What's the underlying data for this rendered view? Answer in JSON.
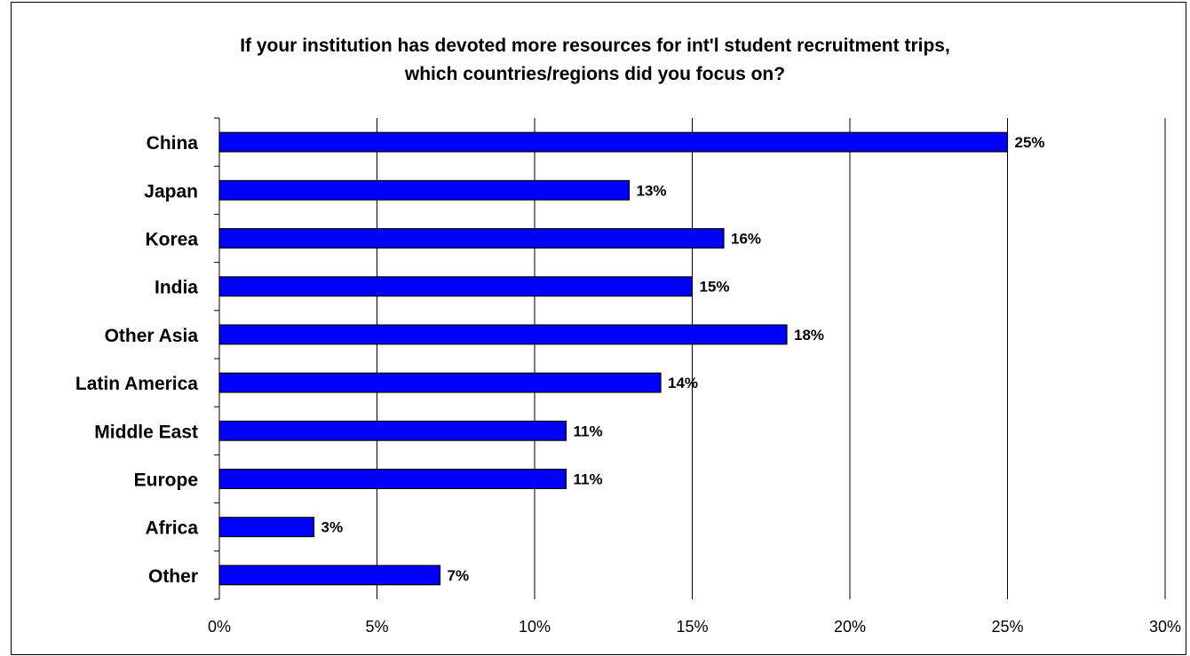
{
  "chart_data": {
    "type": "bar",
    "orientation": "horizontal",
    "title_lines": [
      "If your institution has devoted more resources for int'l student recruitment trips,",
      "which countries/regions did you focus on?"
    ],
    "categories": [
      "China",
      "Japan",
      "Korea",
      "India",
      "Other Asia",
      "Latin America",
      "Middle East",
      "Europe",
      "Africa",
      "Other"
    ],
    "values": [
      25,
      13,
      16,
      15,
      18,
      14,
      11,
      11,
      3,
      7
    ],
    "data_labels": [
      "25%",
      "13%",
      "16%",
      "15%",
      "18%",
      "14%",
      "11%",
      "11%",
      "3%",
      "7%"
    ],
    "x_ticks": [
      0,
      5,
      10,
      15,
      20,
      25,
      30
    ],
    "x_tick_labels": [
      "0%",
      "5%",
      "10%",
      "15%",
      "20%",
      "25%",
      "30%"
    ],
    "xlim": [
      0,
      30
    ],
    "grid": "vertical",
    "legend": "none",
    "bar_color": "#0000FF",
    "xlabel": "",
    "ylabel": ""
  }
}
